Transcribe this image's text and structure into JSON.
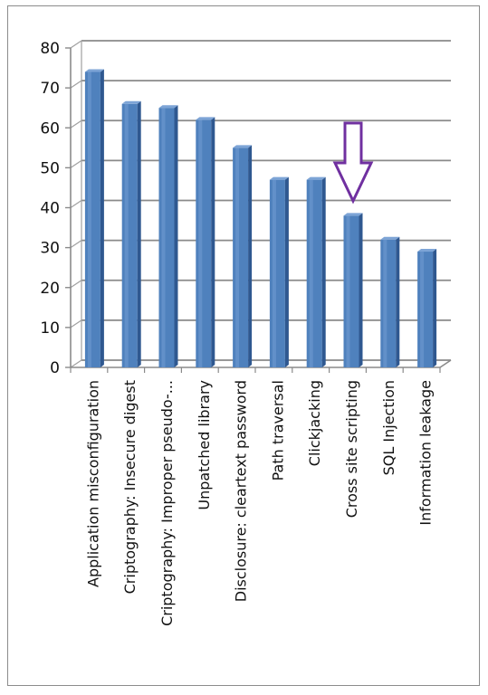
{
  "chart_data": {
    "type": "bar",
    "title": "",
    "xlabel": "",
    "ylabel": "",
    "categories": [
      "Application misconfiguration",
      "Criptography: Insecure digest",
      "Criptography: Improper pseudo-...",
      "Unpatched library",
      "Disclosure: cleartext password",
      "Path traversal",
      "Clickjacking",
      "Cross site scripting",
      "SQL Injection",
      "Information leakage"
    ],
    "values": [
      74,
      66,
      65,
      62,
      55,
      47,
      47,
      38,
      32,
      29
    ],
    "ylim": [
      0,
      80
    ],
    "yticks": [
      0,
      10,
      20,
      30,
      40,
      50,
      60,
      70,
      80
    ],
    "grid": true,
    "legend": "none",
    "bar_color": "#4f81bd",
    "highlight": {
      "category": "Cross site scripting",
      "marker": "down-arrow-outline",
      "color": "#7030a0"
    }
  }
}
